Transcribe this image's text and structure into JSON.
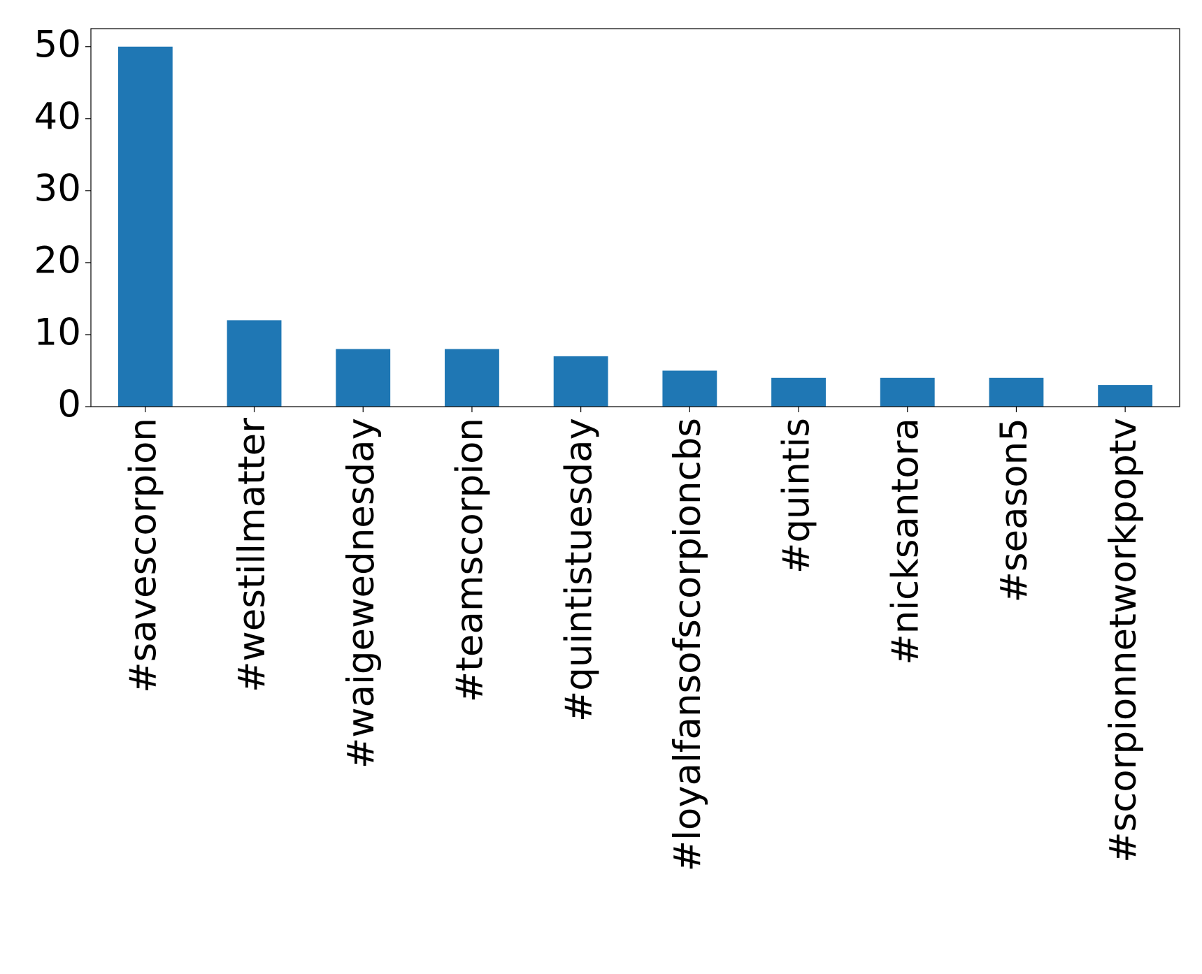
{
  "chart_data": {
    "type": "bar",
    "categories": [
      "#savescorpion",
      "#westillmatter",
      "#waigewednesday",
      "#teamscorpion",
      "#quintistuesday",
      "#loyalfansofscorpioncbs",
      "#quintis",
      "#nicksantora",
      "#season5",
      "#scorpionnetworkpoptv"
    ],
    "values": [
      50,
      12,
      8,
      8,
      7,
      5,
      4,
      4,
      4,
      3
    ],
    "color": "#1f77b4",
    "ylim": [
      0,
      52.5
    ],
    "yticks": [
      0,
      10,
      20,
      30,
      40,
      50
    ],
    "grid": false
  }
}
